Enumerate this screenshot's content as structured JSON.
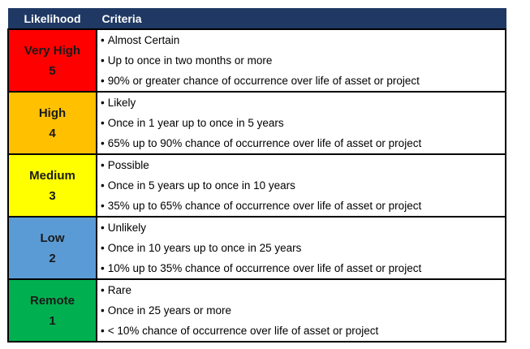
{
  "header": {
    "likelihood": "Likelihood",
    "criteria": "Criteria"
  },
  "rows": [
    {
      "level": "Very High",
      "score": "5",
      "color": "#ff0000",
      "criteria": [
        "Almost Certain",
        "Up to once in two months or more",
        "90% or greater chance of occurrence over life of asset or project"
      ]
    },
    {
      "level": "High",
      "score": "4",
      "color": "#ffc000",
      "criteria": [
        "Likely",
        "Once in 1 year up to once in 5 years",
        "65% up to 90% chance of occurrence over life of asset or project"
      ]
    },
    {
      "level": "Medium",
      "score": "3",
      "color": "#ffff00",
      "criteria": [
        "Possible",
        "Once in 5 years up to once in 10 years",
        "35% up to 65% chance of occurrence over life of asset or project"
      ]
    },
    {
      "level": "Low",
      "score": "2",
      "color": "#5b9bd5",
      "criteria": [
        "Unlikely",
        "Once in 10 years up to once in 25 years",
        "10% up to 35% chance of occurrence over life of asset or project"
      ]
    },
    {
      "level": "Remote",
      "score": "1",
      "color": "#00b050",
      "criteria": [
        "Rare",
        "Once in 25 years or more",
        "< 10% chance of occurrence over life of asset or project"
      ]
    }
  ]
}
